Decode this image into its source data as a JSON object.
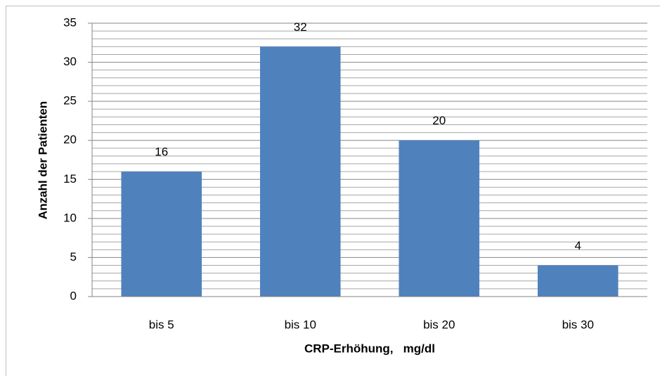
{
  "chart_data": {
    "type": "bar",
    "x_label": "CRP-Erhöhung,   mg/dl",
    "y_label": "Anzahl der Patienten",
    "categories": [
      "bis 5",
      "bis 10",
      "bis 20",
      "bis 30"
    ],
    "values": [
      16,
      32,
      20,
      4
    ],
    "color": "#4f81bd",
    "ylim": [
      0,
      35
    ],
    "yticks": [
      0,
      5,
      10,
      15,
      20,
      25,
      30,
      35
    ],
    "grid": "minor"
  }
}
